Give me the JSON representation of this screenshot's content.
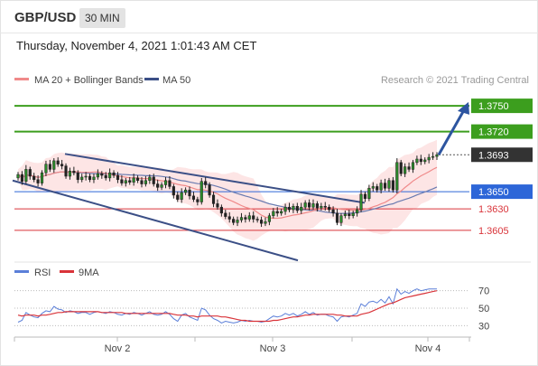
{
  "header": {
    "pair": "GBP/USD",
    "timeframe": "30 MIN",
    "datetime": "Thursday, November 4, 2021 1:01:43 AM CET"
  },
  "legend": {
    "ma20": "MA 20 + Bollinger Bands",
    "ma50": "MA 50",
    "credit": "Research © 2021 Trading Central"
  },
  "rsi_legend": {
    "rsi": "RSI",
    "ma9": "9MA"
  },
  "colors": {
    "green": "#3c9e1e",
    "blue": "#2d66d8",
    "red": "#d9343a",
    "dark": "#333333",
    "channel": "#3b4f86",
    "band": "#fcdcdc"
  },
  "chart_data": {
    "type": "candlestick",
    "price_levels": [
      {
        "label": "1.3750",
        "value": 1.375,
        "color": "green"
      },
      {
        "label": "1.3720",
        "value": 1.372,
        "color": "green"
      },
      {
        "label": "1.3693",
        "value": 1.3693,
        "color": "dark"
      },
      {
        "label": "1.3650",
        "value": 1.365,
        "color": "blue"
      },
      {
        "label": "1.3630",
        "value": 1.363,
        "color": "red"
      },
      {
        "label": "1.3605",
        "value": 1.3605,
        "color": "red"
      }
    ],
    "x_ticks": [
      "Nov 2",
      "Nov 3",
      "Nov 4"
    ],
    "rsi_ticks": [
      70,
      50,
      30
    ],
    "price_ylim": [
      1.357,
      1.3775
    ],
    "rsi_ylim": [
      20,
      80
    ],
    "closes": [
      1.367,
      1.3662,
      1.3676,
      1.3668,
      1.3664,
      1.366,
      1.3672,
      1.3682,
      1.3676,
      1.3686,
      1.3682,
      1.368,
      1.3668,
      1.3674,
      1.3672,
      1.3664,
      1.3667,
      1.3668,
      1.3664,
      1.3667,
      1.3671,
      1.3669,
      1.3666,
      1.3672,
      1.3669,
      1.3664,
      1.366,
      1.3663,
      1.3661,
      1.3666,
      1.3663,
      1.3659,
      1.3663,
      1.3667,
      1.3659,
      1.3655,
      1.3658,
      1.3663,
      1.3656,
      1.3646,
      1.3641,
      1.3649,
      1.3652,
      1.3645,
      1.3641,
      1.3638,
      1.3662,
      1.3658,
      1.3646,
      1.3636,
      1.3632,
      1.3625,
      1.3621,
      1.3618,
      1.3614,
      1.3617,
      1.362,
      1.3618,
      1.3622,
      1.3618,
      1.3617,
      1.3613,
      1.3615,
      1.3622,
      1.3627,
      1.3625,
      1.3627,
      1.3632,
      1.3629,
      1.3633,
      1.3628,
      1.3632,
      1.3637,
      1.3632,
      1.3636,
      1.3631,
      1.3633,
      1.3632,
      1.3629,
      1.3625,
      1.3614,
      1.3622,
      1.3624,
      1.3622,
      1.3625,
      1.3629,
      1.3647,
      1.3642,
      1.3654,
      1.3656,
      1.3652,
      1.366,
      1.3654,
      1.3663,
      1.3652,
      1.3684,
      1.3671,
      1.3679,
      1.3676,
      1.3684,
      1.3688,
      1.3685,
      1.3687,
      1.369,
      1.3691,
      1.3693
    ],
    "rsi": [
      34,
      36,
      45,
      42,
      40,
      39,
      44,
      47,
      46,
      52,
      49,
      48,
      45,
      47,
      46,
      44,
      45,
      45,
      43,
      45,
      46,
      45,
      44,
      46,
      45,
      43,
      42,
      44,
      43,
      45,
      44,
      42,
      44,
      46,
      43,
      42,
      43,
      46,
      43,
      38,
      35,
      42,
      44,
      40,
      38,
      36,
      50,
      48,
      42,
      38,
      36,
      33,
      35,
      34,
      33,
      34,
      36,
      35,
      36,
      35,
      35,
      34,
      35,
      38,
      41,
      40,
      41,
      44,
      42,
      44,
      41,
      43,
      46,
      43,
      45,
      42,
      43,
      43,
      41,
      40,
      35,
      40,
      41,
      40,
      42,
      44,
      55,
      52,
      57,
      58,
      56,
      60,
      56,
      63,
      55,
      72,
      66,
      69,
      67,
      70,
      72,
      70,
      71,
      72,
      72,
      72
    ],
    "rsi_ma9": [
      42,
      41,
      42,
      42,
      42,
      41,
      42,
      42,
      43,
      44,
      45,
      45,
      46,
      46,
      46,
      46,
      46,
      46,
      46,
      46,
      46,
      45,
      45,
      45,
      45,
      45,
      45,
      44,
      44,
      44,
      44,
      44,
      44,
      44,
      44,
      44,
      44,
      44,
      44,
      43,
      42,
      42,
      42,
      41,
      41,
      40,
      41,
      41,
      41,
      41,
      41,
      40,
      40,
      39,
      38,
      37,
      36,
      36,
      35,
      35,
      35,
      35,
      35,
      35,
      36,
      36,
      37,
      38,
      39,
      40,
      40,
      41,
      42,
      42,
      43,
      43,
      43,
      43,
      43,
      43,
      42,
      42,
      41,
      41,
      41,
      41,
      43,
      44,
      45,
      47,
      49,
      51,
      53,
      55,
      56,
      58,
      60,
      62,
      63,
      64,
      65,
      66,
      67,
      68,
      69,
      70
    ]
  }
}
